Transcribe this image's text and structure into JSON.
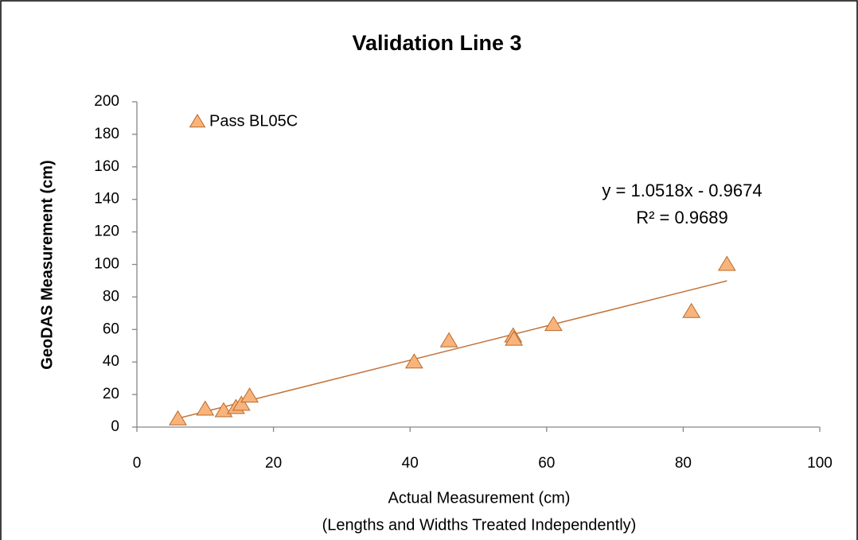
{
  "chart_data": {
    "type": "scatter",
    "title": "Validation Line 3",
    "xlabel": "Actual Measurement (cm)",
    "xlabel_sub": "(Lengths and Widths Treated Independently)",
    "ylabel": "GeoDAS Measurement (cm)",
    "xlim": [
      0,
      100
    ],
    "xticks": [
      0,
      20,
      40,
      60,
      80,
      100
    ],
    "ylim": [
      0,
      200
    ],
    "yticks": [
      0,
      20,
      40,
      60,
      80,
      100,
      120,
      140,
      160,
      180,
      200
    ],
    "grid": false,
    "legend": "upper left",
    "series": [
      {
        "name": "Pass BL05C",
        "color": "#f9b47c",
        "edge_color": "#b8692a",
        "x": [
          6,
          10,
          12.7,
          14.5,
          15.3,
          16.5,
          40.6,
          45.7,
          55.1,
          55.2,
          61,
          81.2,
          86.4
        ],
        "values": [
          5,
          11,
          10,
          12,
          14,
          19,
          40,
          53,
          56,
          54,
          63,
          71,
          100
        ]
      }
    ],
    "trendline": {
      "slope": 1.0518,
      "intercept": -0.9674,
      "color": "#c0733a",
      "equation": "y = 1.0518x  - 0.9674",
      "r2": "R² = 0.9689"
    }
  }
}
